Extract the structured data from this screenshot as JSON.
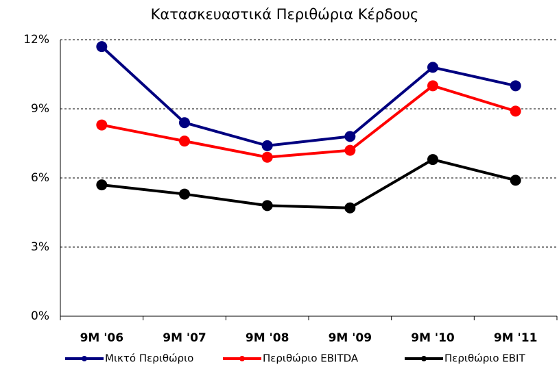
{
  "chart_data": {
    "type": "line",
    "title": "Κατασκευαστικά Περιθώρια Κέρδους",
    "categories": [
      "9M '06",
      "9M '07",
      "9M '08",
      "9M '09",
      "9M '10",
      "9M '11"
    ],
    "series": [
      {
        "name": "Μικτό Περιθώριο",
        "color": "#000080",
        "values": [
          11.7,
          8.4,
          7.4,
          7.8,
          10.8,
          10.0
        ]
      },
      {
        "name": "Περιθώριο EBITDA",
        "color": "#ff0000",
        "values": [
          8.3,
          7.6,
          6.9,
          7.2,
          10.0,
          8.9
        ]
      },
      {
        "name": "Περιθώριο EBIT",
        "color": "#000000",
        "values": [
          5.7,
          5.3,
          4.8,
          4.7,
          6.8,
          5.9
        ]
      }
    ],
    "ylim": [
      0,
      12
    ],
    "yticks": [
      {
        "value": 0,
        "label": "0%"
      },
      {
        "value": 3,
        "label": "3%"
      },
      {
        "value": 6,
        "label": "6%"
      },
      {
        "value": 9,
        "label": "9%"
      },
      {
        "value": 12,
        "label": "12%"
      }
    ],
    "grid": true,
    "legend": "bottom"
  }
}
